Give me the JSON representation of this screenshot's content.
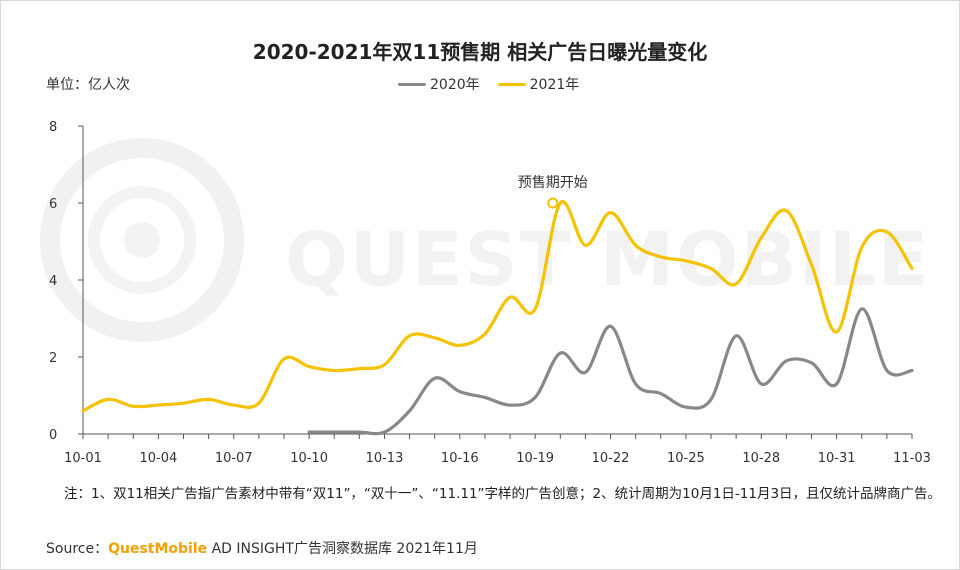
{
  "title": "2020-2021年双11预售期 相关广告日曝光量变化",
  "unit_label": "单位：亿人次",
  "colors": {
    "series_2020": "#888888",
    "series_2021": "#f5c200",
    "axis": "#555555",
    "source_brand": "#f0a000"
  },
  "legend": {
    "items": [
      "2020年",
      "2021年"
    ],
    "placement": "top-center"
  },
  "annotation": {
    "text": "预售期开始",
    "x": 19.7,
    "y": 6.0
  },
  "note": "注：1、双11相关广告指广告素材中带有“双11”，“双十一”、“11.11”字样的广告创意；2、统计周期为10月1日-11月3日，且仅统计品牌商广告。",
  "source": {
    "prefix": "Source：",
    "brand": "QuestMobile",
    "suffix": " AD INSIGHT广告洞察数据库 2021年11月"
  },
  "watermark": "QUEST MOBILE",
  "chart_data": {
    "type": "line",
    "title": "2020-2021年双11预售期 相关广告日曝光量变化",
    "xlabel": "",
    "ylabel": "单位：亿人次",
    "xlim": [
      1,
      34
    ],
    "ylim": [
      0,
      8
    ],
    "yticks": [
      0,
      2,
      4,
      6,
      8
    ],
    "grid": false,
    "x_tick_labels": [
      "10-01",
      "10-04",
      "10-07",
      "10-10",
      "10-13",
      "10-16",
      "10-19",
      "10-22",
      "10-25",
      "10-28",
      "10-31",
      "11-03"
    ],
    "x_tick_days": [
      1,
      4,
      7,
      10,
      13,
      16,
      19,
      22,
      25,
      28,
      31,
      34
    ],
    "series": [
      {
        "name": "2020年",
        "x": [
          10,
          11,
          12,
          13,
          14,
          15,
          16,
          17,
          18,
          19,
          20,
          21,
          22,
          23,
          24,
          25,
          26,
          27,
          28,
          29,
          30,
          31,
          32,
          33,
          34
        ],
        "y": [
          0.05,
          0.05,
          0.05,
          0.05,
          0.6,
          1.45,
          1.1,
          0.95,
          0.75,
          0.95,
          2.1,
          1.6,
          2.8,
          1.3,
          1.05,
          0.7,
          0.9,
          2.55,
          1.3,
          1.9,
          1.85,
          1.3,
          3.25,
          1.65,
          1.65
        ]
      },
      {
        "name": "2021年",
        "x": [
          1,
          2,
          3,
          4,
          5,
          6,
          7,
          8,
          9,
          10,
          11,
          12,
          13,
          14,
          15,
          16,
          17,
          18,
          19,
          20,
          21,
          22,
          23,
          24,
          25,
          26,
          27,
          28,
          29,
          30,
          31,
          32,
          33,
          34
        ],
        "y": [
          0.6,
          0.9,
          0.72,
          0.75,
          0.8,
          0.9,
          0.75,
          0.8,
          1.95,
          1.75,
          1.65,
          1.7,
          1.8,
          2.55,
          2.5,
          2.3,
          2.6,
          3.55,
          3.25,
          6.0,
          4.9,
          5.75,
          4.9,
          4.6,
          4.5,
          4.3,
          3.9,
          5.1,
          5.8,
          4.4,
          2.65,
          4.85,
          5.25,
          4.3
        ]
      }
    ]
  }
}
